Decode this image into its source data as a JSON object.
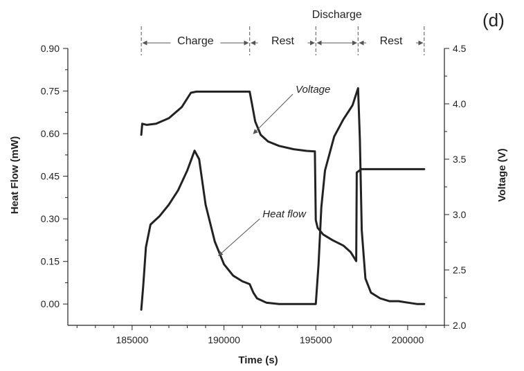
{
  "panel_label": "(d)",
  "chart_data": {
    "type": "line",
    "title": "",
    "xlabel": "Time (s)",
    "ylabel": "Heat Flow (mW)",
    "y2label": "Voltage (V)",
    "xlim": [
      181500,
      202000
    ],
    "ylim": [
      -0.075,
      0.9
    ],
    "y2lim": [
      2.0,
      4.5
    ],
    "x_ticks": [
      185000,
      190000,
      195000,
      200000
    ],
    "x_tick_labels": [
      "185000",
      "190000",
      "195000",
      "200000"
    ],
    "y_ticks": [
      0.0,
      0.15,
      0.3,
      0.45,
      0.6,
      0.75,
      0.9
    ],
    "y_tick_labels": [
      "0.00",
      "0.15",
      "0.30",
      "0.45",
      "0.60",
      "0.75",
      "0.90"
    ],
    "y2_ticks": [
      2.0,
      2.5,
      3.0,
      3.5,
      4.0,
      4.5
    ],
    "y2_tick_labels": [
      "2.0",
      "2.5",
      "3.0",
      "3.5",
      "4.0",
      "4.5"
    ],
    "grid": false,
    "series": [
      {
        "name": "Voltage",
        "axis": "right",
        "x": [
          185500,
          185550,
          185800,
          186300,
          187000,
          187700,
          188200,
          188500,
          189500,
          190500,
          191400,
          191500,
          191700,
          192000,
          192400,
          193000,
          193800,
          194500,
          194950,
          195000,
          195100,
          195400,
          195900,
          196500,
          196900,
          197200,
          197230,
          197400,
          197450,
          197550,
          198000,
          199000,
          200000,
          200900
        ],
        "values": [
          3.72,
          3.82,
          3.81,
          3.82,
          3.87,
          3.97,
          4.1,
          4.11,
          4.11,
          4.11,
          4.11,
          4.02,
          3.84,
          3.72,
          3.66,
          3.62,
          3.59,
          3.575,
          3.57,
          2.95,
          2.88,
          2.82,
          2.77,
          2.72,
          2.66,
          2.58,
          3.38,
          3.4,
          3.41,
          3.41,
          3.41,
          3.41,
          3.41,
          3.41
        ]
      },
      {
        "name": "Heat flow",
        "axis": "left",
        "x": [
          185500,
          185600,
          185750,
          186000,
          186500,
          187000,
          187500,
          188000,
          188400,
          188650,
          189000,
          189500,
          190000,
          190500,
          191000,
          191400,
          191600,
          191800,
          192300,
          193000,
          194000,
          194900,
          195000,
          195150,
          195300,
          195500,
          196000,
          196500,
          197000,
          197300,
          197400,
          197500,
          197700,
          198000,
          198500,
          199000,
          199500,
          200000,
          200500,
          200900
        ],
        "values": [
          -0.02,
          0.06,
          0.2,
          0.28,
          0.31,
          0.35,
          0.4,
          0.47,
          0.54,
          0.51,
          0.35,
          0.22,
          0.14,
          0.1,
          0.08,
          0.07,
          0.04,
          0.02,
          0.005,
          0.0,
          0.0,
          0.0,
          0.0,
          0.14,
          0.34,
          0.47,
          0.59,
          0.65,
          0.7,
          0.76,
          0.58,
          0.26,
          0.09,
          0.04,
          0.02,
          0.01,
          0.01,
          0.005,
          0.0,
          0.0
        ]
      }
    ],
    "annotations": [
      {
        "text": "Voltage",
        "x": 193900,
        "y2": 4.1,
        "arrow_to_x": 191600,
        "arrow_to_y2": 3.73
      },
      {
        "text": "Heat flow",
        "x": 192100,
        "y": 0.305,
        "arrow_to_x": 189700,
        "arrow_to_y": 0.17
      }
    ],
    "phases": {
      "group_label": "Discharge",
      "boundaries": [
        185500,
        191400,
        195000,
        197300,
        200900
      ],
      "segments": [
        {
          "label": "Charge",
          "start": 185500,
          "end": 191400
        },
        {
          "label": "Rest",
          "start": 191400,
          "end": 195000
        },
        {
          "label": "",
          "start": 195000,
          "end": 197300
        },
        {
          "label": "Rest",
          "start": 197300,
          "end": 200900
        }
      ]
    }
  }
}
